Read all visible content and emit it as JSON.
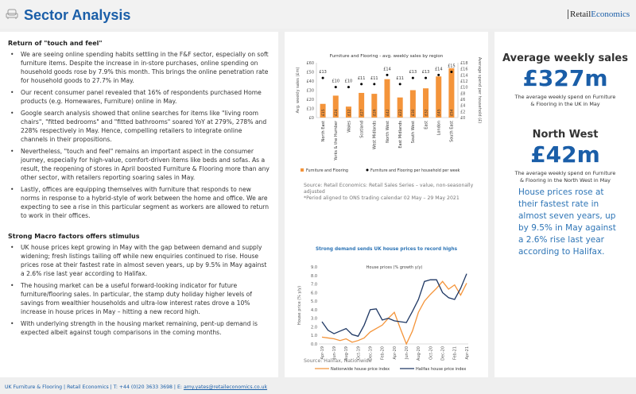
{
  "header": {
    "title": "Sector Analysis",
    "logo": "RetailEconomics",
    "icon": "armchair-icon"
  },
  "left": {
    "section1": {
      "heading": "Return of \"touch and feel\"",
      "bullets": [
        "We are seeing online spending habits settling in the F&F sector, especially on soft furniture items. Despite the increase in in-store purchases, online spending on household goods rose by 7.9% this month. This brings the online penetration rate for household goods to 27.7% in May.",
        "Our recent consumer panel revealed that 16% of respondents purchased Home products (e.g. Homewares, Furniture) online in May.",
        "Google search analysis showed that online searches for items like \"living room chairs\", \"fitted bedrooms\" and \"fitted bathrooms\" soared YoY at 279%, 278% and 228% respectively in May. Hence, compelling retailers to integrate online channels in their propositions.",
        "Nevertheless, \"touch and feel\" remains an important aspect in the consumer journey, especially for high-value, comfort-driven items like beds and sofas. As a result, the reopening of stores in April boosted Furniture & Flooring more than any other sector, with retailers reporting soaring sales in May.",
        "Lastly, offices are equipping themselves with furniture that responds to new norms in response to a hybrid-style of work between the home and office. We are expecting to see a rise in this particular segment as workers are allowed to return to work in their offices."
      ]
    },
    "section2": {
      "heading": "Strong Macro factors offers stimulus",
      "bullets": [
        "UK house prices kept growing in May with the gap between demand and supply widening; fresh listings tailing off while new enquiries continued to rise. House prices rose at their fastest rate in almost seven years, up by 9.5% in May against a 2.6% rise last year according to Halifax.",
        "The housing market can be a useful forward-looking indicator for future furniture/flooring sales. In particular, the stamp duty holiday higher levels of savings from wealthier households and ultra-low interest rates drove a 10% increase in house prices in May – hitting a new record high.",
        "With underlying strength in the housing market remaining, pent-up demand is expected albeit against tough comparisons in the coming months."
      ]
    }
  },
  "mid": {
    "bar_source": "Source: Retail Economics: Retail Sales Series – value, non-seasonally adjusted",
    "bar_note": "*Period aligned to ONS trading calendar 02 May – 29 May 2021",
    "line_source": "Source: Halifax, Nationwide"
  },
  "right": {
    "kpi1": {
      "heading": "Average weekly sales",
      "value": "£327m",
      "desc": "The average weekly spend on Furniture & Flooring in the UK in May"
    },
    "kpi2": {
      "heading": "North West",
      "value": "£42m",
      "desc": "The average weekly spend on Furniture & Flooring in the North West in May"
    },
    "callout": "House prices rose at their fastest rate in almost seven years, up by 9.5% in May against a 2.6% rise last year according to Halifax."
  },
  "footer": {
    "text": "UK Furniture & Flooring | Retail Economics | T: +44 (0)20 3633 3698 | E: ",
    "email": "amy.yates@retaileconomics.co.uk"
  },
  "colors": {
    "brand": "#1a5ea8",
    "orange": "#f4943a",
    "navy": "#1f3864"
  },
  "chart_data": [
    {
      "type": "bar",
      "title": "Furniture and Flooring - avg. weekly sales by region",
      "categories": [
        "North East",
        "Yorks & the Humber",
        "Wales",
        "Scotland",
        "West Midlands",
        "North West",
        "East Midlands",
        "South West",
        "East",
        "London",
        "South East"
      ],
      "series": [
        {
          "name": "Furniture and Flooring",
          "values": [
            15,
            24,
            12,
            27,
            26,
            42,
            22,
            30,
            32,
            45,
            54
          ],
          "labels": [
            "£15",
            "£24",
            "£12",
            "£27",
            "£26",
            "£42",
            "£22",
            "£30",
            "£32",
            "£45",
            "£54"
          ]
        },
        {
          "name": "Furniture and Flooring per household per week",
          "axis": "right",
          "values": [
            13,
            10,
            10,
            11,
            11,
            14,
            11,
            13,
            13,
            14,
            15
          ],
          "labels": [
            "£13",
            "£10",
            "£10",
            "£11",
            "£11",
            "£14",
            "£11",
            "£13",
            "£13",
            "£14",
            "£15"
          ]
        }
      ],
      "ylabel": "Avg. weekly sales (£m)",
      "y2label": "Average spend per household (£)",
      "ylim": [
        0,
        60
      ],
      "yticks": [
        "£0",
        "£10",
        "£20",
        "£30",
        "£40",
        "£50",
        "£60"
      ],
      "y2lim": [
        0,
        18
      ],
      "y2ticks": [
        "£0",
        "£2",
        "£4",
        "£6",
        "£8",
        "£10",
        "£12",
        "£14",
        "£16",
        "£18"
      ],
      "legend": "bottom"
    },
    {
      "type": "line",
      "title": "Strong demand sends UK house prices to record highs",
      "subtitle": "House prices (% growth y/y)",
      "x": [
        "Apr-19",
        "May-19",
        "Jun-19",
        "Jul-19",
        "Aug-19",
        "Sep-19",
        "Oct-19",
        "Nov-19",
        "Dec-19",
        "Jan-20",
        "Feb-20",
        "Mar-20",
        "Apr-20",
        "May-20",
        "Jun-20",
        "Jul-20",
        "Aug-20",
        "Sep-20",
        "Oct-20",
        "Nov-20",
        "Dec-20",
        "Jan-21",
        "Feb-21",
        "Mar-21",
        "Apr-21"
      ],
      "xticks": [
        "Apr-19",
        "Jun-19",
        "Aug-19",
        "Oct-19",
        "Dec-19",
        "Feb-20",
        "Apr-20",
        "Jun-20",
        "Aug-20",
        "Oct-20",
        "Dec-20",
        "Feb-21",
        "Apr-21"
      ],
      "series": [
        {
          "name": "Nationwide house price index",
          "values": [
            0.8,
            0.7,
            0.6,
            0.4,
            0.6,
            0.2,
            0.4,
            0.7,
            1.4,
            1.8,
            2.2,
            3.0,
            3.7,
            1.8,
            0.0,
            1.5,
            3.7,
            5.0,
            5.8,
            6.5,
            7.3,
            6.4,
            6.9,
            5.7,
            7.1
          ]
        },
        {
          "name": "Halifax house price index",
          "values": [
            2.6,
            1.6,
            1.2,
            1.5,
            1.8,
            1.1,
            0.9,
            2.2,
            4.0,
            4.1,
            2.8,
            3.0,
            2.7,
            2.6,
            2.5,
            3.8,
            5.2,
            7.3,
            7.5,
            7.5,
            6.0,
            5.4,
            5.2,
            6.5,
            8.2
          ]
        }
      ],
      "ylabel": "House price (% y/y)",
      "ylim": [
        0,
        9
      ],
      "yticks": [
        "0.0",
        "1.0",
        "2.0",
        "3.0",
        "4.0",
        "5.0",
        "6.0",
        "7.0",
        "8.0",
        "9.0"
      ],
      "legend": "bottom"
    }
  ]
}
